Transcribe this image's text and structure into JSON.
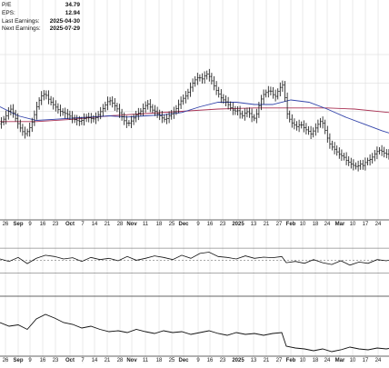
{
  "stats": [
    {
      "label": "P/E",
      "value": "34.79"
    },
    {
      "label": "EPS:",
      "value": "12.94"
    },
    {
      "label": "Last Earnings:",
      "value": "2025-04-30"
    },
    {
      "label": "Next Earnings:",
      "value": "2025-07-29"
    }
  ],
  "colors": {
    "bars": "#111111",
    "ma_short": "#3344aa",
    "ma_long": "#aa3355",
    "grid": "#d6d6d6",
    "panel_border": "#333333"
  },
  "chart_data": [
    {
      "type": "ohlc",
      "title": "",
      "grid": true,
      "x_labels": [
        {
          "t": "26",
          "bold": false
        },
        {
          "t": "Sep",
          "bold": true
        },
        {
          "t": "9",
          "bold": false
        },
        {
          "t": "16",
          "bold": false
        },
        {
          "t": "23",
          "bold": false
        },
        {
          "t": "Oct",
          "bold": true
        },
        {
          "t": "7",
          "bold": false
        },
        {
          "t": "14",
          "bold": false
        },
        {
          "t": "21",
          "bold": false
        },
        {
          "t": "28",
          "bold": false
        },
        {
          "t": "Nov",
          "bold": true
        },
        {
          "t": "11",
          "bold": false
        },
        {
          "t": "18",
          "bold": false
        },
        {
          "t": "25",
          "bold": false
        },
        {
          "t": "Dec",
          "bold": true
        },
        {
          "t": "9",
          "bold": false
        },
        {
          "t": "16",
          "bold": false
        },
        {
          "t": "23",
          "bold": false
        },
        {
          "t": "2025",
          "bold": true
        },
        {
          "t": "13",
          "bold": false
        },
        {
          "t": "21",
          "bold": false
        },
        {
          "t": "27",
          "bold": false
        },
        {
          "t": "Feb",
          "bold": true
        },
        {
          "t": "10",
          "bold": false
        },
        {
          "t": "18",
          "bold": false
        },
        {
          "t": "24",
          "bold": false
        },
        {
          "t": "Mar",
          "bold": true
        },
        {
          "t": "10",
          "bold": false
        },
        {
          "t": "17",
          "bold": false
        },
        {
          "t": "24",
          "bold": false
        }
      ],
      "price_path": [
        [
          0,
          0.39
        ],
        [
          3,
          0.42
        ],
        [
          6,
          0.45
        ],
        [
          9,
          0.5
        ],
        [
          12,
          0.52
        ],
        [
          15,
          0.48
        ],
        [
          18,
          0.42
        ],
        [
          21,
          0.37
        ],
        [
          24,
          0.33
        ],
        [
          27,
          0.3
        ],
        [
          30,
          0.32
        ],
        [
          33,
          0.36
        ],
        [
          36,
          0.42
        ],
        [
          39,
          0.5
        ],
        [
          42,
          0.58
        ],
        [
          45,
          0.63
        ],
        [
          48,
          0.65
        ],
        [
          51,
          0.64
        ],
        [
          54,
          0.6
        ],
        [
          57,
          0.57
        ],
        [
          60,
          0.55
        ],
        [
          63,
          0.52
        ],
        [
          66,
          0.5
        ],
        [
          69,
          0.49
        ],
        [
          72,
          0.48
        ],
        [
          75,
          0.47
        ],
        [
          78,
          0.45
        ],
        [
          81,
          0.43
        ],
        [
          84,
          0.42
        ],
        [
          87,
          0.41
        ],
        [
          90,
          0.42
        ],
        [
          93,
          0.44
        ],
        [
          96,
          0.45
        ],
        [
          99,
          0.44
        ],
        [
          102,
          0.43
        ],
        [
          105,
          0.44
        ],
        [
          108,
          0.47
        ],
        [
          111,
          0.5
        ],
        [
          114,
          0.53
        ],
        [
          117,
          0.57
        ],
        [
          120,
          0.6
        ],
        [
          123,
          0.58
        ],
        [
          126,
          0.55
        ],
        [
          129,
          0.52
        ],
        [
          132,
          0.48
        ],
        [
          135,
          0.44
        ],
        [
          138,
          0.4
        ],
        [
          141,
          0.39
        ],
        [
          144,
          0.41
        ],
        [
          147,
          0.44
        ],
        [
          150,
          0.47
        ],
        [
          153,
          0.49
        ],
        [
          156,
          0.51
        ],
        [
          159,
          0.54
        ],
        [
          162,
          0.57
        ],
        [
          165,
          0.54
        ],
        [
          168,
          0.51
        ],
        [
          171,
          0.5
        ],
        [
          174,
          0.47
        ],
        [
          177,
          0.45
        ],
        [
          180,
          0.43
        ],
        [
          183,
          0.43
        ],
        [
          186,
          0.46
        ],
        [
          189,
          0.48
        ],
        [
          192,
          0.5
        ],
        [
          195,
          0.54
        ],
        [
          198,
          0.58
        ],
        [
          201,
          0.61
        ],
        [
          204,
          0.63
        ],
        [
          207,
          0.67
        ],
        [
          210,
          0.72
        ],
        [
          213,
          0.76
        ],
        [
          216,
          0.79
        ],
        [
          219,
          0.8
        ],
        [
          222,
          0.78
        ],
        [
          225,
          0.81
        ],
        [
          228,
          0.83
        ],
        [
          231,
          0.8
        ],
        [
          234,
          0.75
        ],
        [
          237,
          0.7
        ],
        [
          240,
          0.66
        ],
        [
          243,
          0.62
        ],
        [
          246,
          0.6
        ],
        [
          249,
          0.58
        ],
        [
          252,
          0.55
        ],
        [
          255,
          0.52
        ],
        [
          258,
          0.5
        ],
        [
          261,
          0.51
        ],
        [
          264,
          0.48
        ],
        [
          267,
          0.46
        ],
        [
          270,
          0.49
        ],
        [
          273,
          0.5
        ],
        [
          276,
          0.46
        ],
        [
          279,
          0.43
        ],
        [
          282,
          0.47
        ],
        [
          285,
          0.55
        ],
        [
          288,
          0.62
        ],
        [
          291,
          0.66
        ],
        [
          294,
          0.67
        ],
        [
          297,
          0.69
        ],
        [
          300,
          0.65
        ],
        [
          303,
          0.63
        ],
        [
          306,
          0.68
        ],
        [
          309,
          0.72
        ],
        [
          312,
          0.74
        ],
        [
          315,
          0.5
        ],
        [
          318,
          0.44
        ],
        [
          321,
          0.4
        ],
        [
          324,
          0.38
        ],
        [
          327,
          0.36
        ],
        [
          330,
          0.39
        ],
        [
          333,
          0.37
        ],
        [
          336,
          0.34
        ],
        [
          339,
          0.33
        ],
        [
          342,
          0.3
        ],
        [
          345,
          0.33
        ],
        [
          348,
          0.36
        ],
        [
          351,
          0.4
        ],
        [
          354,
          0.42
        ],
        [
          357,
          0.35
        ],
        [
          360,
          0.27
        ],
        [
          363,
          0.21
        ],
        [
          366,
          0.18
        ],
        [
          369,
          0.16
        ],
        [
          372,
          0.13
        ],
        [
          375,
          0.11
        ],
        [
          378,
          0.1
        ],
        [
          381,
          0.07
        ],
        [
          384,
          0.05
        ],
        [
          387,
          0.03
        ],
        [
          390,
          0.02
        ],
        [
          393,
          0.01
        ],
        [
          396,
          0.04
        ],
        [
          399,
          0.02
        ],
        [
          402,
          0.05
        ],
        [
          405,
          0.07
        ],
        [
          408,
          0.08
        ],
        [
          411,
          0.11
        ],
        [
          414,
          0.14
        ],
        [
          417,
          0.16
        ],
        [
          420,
          0.15
        ],
        [
          423,
          0.13
        ],
        [
          426,
          0.12
        ],
        [
          428,
          0.12
        ]
      ],
      "ma_short_path": [
        [
          0,
          0.54
        ],
        [
          20,
          0.46
        ],
        [
          40,
          0.42
        ],
        [
          60,
          0.43
        ],
        [
          80,
          0.44
        ],
        [
          100,
          0.45
        ],
        [
          120,
          0.46
        ],
        [
          140,
          0.45
        ],
        [
          160,
          0.46
        ],
        [
          180,
          0.47
        ],
        [
          200,
          0.49
        ],
        [
          220,
          0.54
        ],
        [
          240,
          0.58
        ],
        [
          260,
          0.58
        ],
        [
          280,
          0.56
        ],
        [
          300,
          0.56
        ],
        [
          320,
          0.6
        ],
        [
          340,
          0.58
        ],
        [
          360,
          0.52
        ],
        [
          380,
          0.45
        ],
        [
          400,
          0.39
        ],
        [
          420,
          0.33
        ],
        [
          428,
          0.31
        ]
      ],
      "ma_long_path": [
        [
          0,
          0.41
        ],
        [
          40,
          0.41
        ],
        [
          80,
          0.43
        ],
        [
          120,
          0.46
        ],
        [
          160,
          0.48
        ],
        [
          200,
          0.5
        ],
        [
          240,
          0.52
        ],
        [
          280,
          0.53
        ],
        [
          320,
          0.53
        ],
        [
          360,
          0.53
        ],
        [
          390,
          0.52
        ],
        [
          428,
          0.49
        ]
      ]
    },
    {
      "type": "line",
      "title": "",
      "reference_lines": [
        0.85,
        0.45,
        0.05
      ],
      "path": [
        [
          0,
          0.5
        ],
        [
          10,
          0.42
        ],
        [
          20,
          0.55
        ],
        [
          30,
          0.35
        ],
        [
          40,
          0.52
        ],
        [
          50,
          0.62
        ],
        [
          60,
          0.58
        ],
        [
          70,
          0.5
        ],
        [
          80,
          0.54
        ],
        [
          90,
          0.42
        ],
        [
          100,
          0.55
        ],
        [
          110,
          0.48
        ],
        [
          120,
          0.52
        ],
        [
          130,
          0.44
        ],
        [
          140,
          0.58
        ],
        [
          150,
          0.46
        ],
        [
          160,
          0.52
        ],
        [
          170,
          0.6
        ],
        [
          180,
          0.55
        ],
        [
          190,
          0.48
        ],
        [
          200,
          0.62
        ],
        [
          210,
          0.52
        ],
        [
          220,
          0.68
        ],
        [
          230,
          0.72
        ],
        [
          240,
          0.58
        ],
        [
          250,
          0.55
        ],
        [
          260,
          0.5
        ],
        [
          270,
          0.6
        ],
        [
          280,
          0.52
        ],
        [
          290,
          0.56
        ],
        [
          300,
          0.54
        ],
        [
          310,
          0.58
        ],
        [
          315,
          0.38
        ],
        [
          325,
          0.42
        ],
        [
          335,
          0.36
        ],
        [
          345,
          0.48
        ],
        [
          355,
          0.38
        ],
        [
          365,
          0.32
        ],
        [
          375,
          0.44
        ],
        [
          385,
          0.3
        ],
        [
          395,
          0.4
        ],
        [
          405,
          0.36
        ],
        [
          415,
          0.48
        ],
        [
          425,
          0.44
        ],
        [
          428,
          0.46
        ]
      ]
    },
    {
      "type": "line",
      "title": "",
      "path": [
        [
          0,
          0.7
        ],
        [
          10,
          0.62
        ],
        [
          20,
          0.65
        ],
        [
          30,
          0.55
        ],
        [
          40,
          0.78
        ],
        [
          50,
          0.88
        ],
        [
          60,
          0.8
        ],
        [
          70,
          0.7
        ],
        [
          80,
          0.66
        ],
        [
          90,
          0.58
        ],
        [
          100,
          0.62
        ],
        [
          110,
          0.55
        ],
        [
          120,
          0.5
        ],
        [
          130,
          0.52
        ],
        [
          140,
          0.48
        ],
        [
          150,
          0.55
        ],
        [
          160,
          0.5
        ],
        [
          170,
          0.46
        ],
        [
          180,
          0.52
        ],
        [
          190,
          0.48
        ],
        [
          200,
          0.5
        ],
        [
          210,
          0.44
        ],
        [
          220,
          0.48
        ],
        [
          230,
          0.52
        ],
        [
          240,
          0.46
        ],
        [
          250,
          0.42
        ],
        [
          260,
          0.48
        ],
        [
          270,
          0.44
        ],
        [
          280,
          0.46
        ],
        [
          290,
          0.42
        ],
        [
          300,
          0.46
        ],
        [
          310,
          0.48
        ],
        [
          315,
          0.18
        ],
        [
          325,
          0.14
        ],
        [
          335,
          0.12
        ],
        [
          345,
          0.08
        ],
        [
          355,
          0.12
        ],
        [
          365,
          0.06
        ],
        [
          375,
          0.1
        ],
        [
          385,
          0.16
        ],
        [
          395,
          0.12
        ],
        [
          405,
          0.1
        ],
        [
          415,
          0.14
        ],
        [
          425,
          0.12
        ],
        [
          428,
          0.13
        ]
      ]
    }
  ]
}
